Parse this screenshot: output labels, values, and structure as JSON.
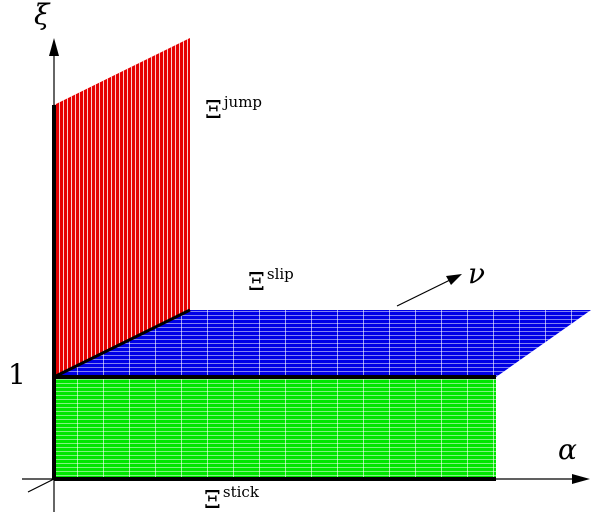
{
  "axes": {
    "vertical_label": "ξ",
    "horizontal_label": "α",
    "oblique_label": "ν",
    "tick_value": "1"
  },
  "regions": {
    "jump": {
      "symbol": "Ξ",
      "superscript": "jump",
      "color": "#e60000"
    },
    "slip": {
      "symbol": "Ξ",
      "superscript": "slip",
      "color": "#0000e6"
    },
    "stick": {
      "symbol": "Ξ",
      "superscript": "stick",
      "color": "#00e600"
    }
  },
  "colors": {
    "axis": "#000000",
    "hatch": "#ffffff"
  }
}
